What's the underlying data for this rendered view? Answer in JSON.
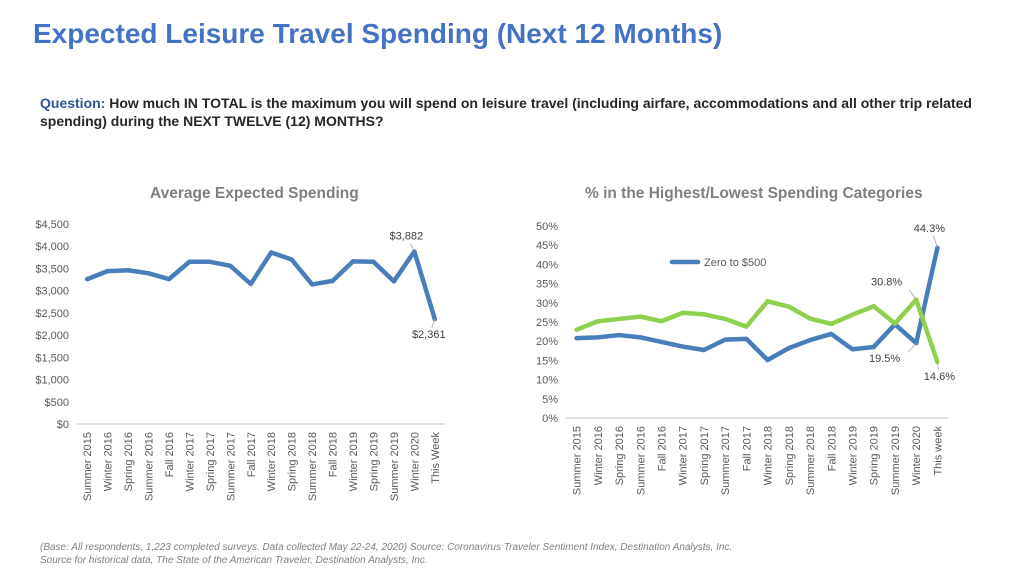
{
  "title": "Expected Leisure Travel Spending (Next 12 Months)",
  "question": {
    "label": "Question:",
    "text": "How much IN TOTAL is the maximum you will spend on leisure travel (including airfare, accommodations and all other trip related spending) during the NEXT TWELVE (12) MONTHS?"
  },
  "footnote": {
    "line1": "(Base: All respondents, 1,223 completed surveys. Data collected May 22-24, 2020) Source: Coronavirus Traveler Sentiment Index, Destination Analysts, Inc.",
    "line2": "Source for historical data, The State of the American Traveler, Destination Analysts, Inc."
  },
  "chart_data": [
    {
      "type": "line",
      "title": "Average Expected Spending",
      "categories": [
        "Summer 2015",
        "Winter 2016",
        "Spring 2016",
        "Summer 2016",
        "Fall 2016",
        "Winter 2017",
        "Spring 2017",
        "Summer 2017",
        "Fall 2017",
        "Winter 2018",
        "Spring 2018",
        "Summer 2018",
        "Fall 2018",
        "Winter 2019",
        "Spring 2019",
        "Summer 2019",
        "Winter 2020",
        "This Week"
      ],
      "series": [
        {
          "color": "#4a7ebb",
          "values": [
            3260,
            3440,
            3460,
            3390,
            3260,
            3650,
            3650,
            3560,
            3150,
            3860,
            3700,
            3140,
            3220,
            3660,
            3650,
            3210,
            3882,
            2361
          ]
        }
      ],
      "data_labels": [
        {
          "index": 16,
          "text": "$3,882"
        },
        {
          "index": 17,
          "text": "$2,361"
        }
      ],
      "ylim": [
        0,
        4500
      ],
      "yticks": [
        0,
        500,
        1000,
        1500,
        2000,
        2500,
        3000,
        3500,
        4000,
        4500
      ],
      "ytick_labels": [
        "$0",
        "$500",
        "$1,000",
        "$1,500",
        "$2,000",
        "$2,500",
        "$3,000",
        "$3,500",
        "$4,000",
        "$4,500"
      ],
      "grid": false
    },
    {
      "type": "line",
      "title": "% in the Highest/Lowest Spending Categories",
      "categories": [
        "Summer 2015",
        "Winter 2016",
        "Spring 2016",
        "Summer 2016",
        "Fall 2016",
        "Winter 2017",
        "Spring 2017",
        "Summer 2017",
        "Fall 2017",
        "Winter 2018",
        "Spring 2018",
        "Summer 2018",
        "Fall 2018",
        "Winter 2019",
        "Spring 2019",
        "Summer 2019",
        "Winter 2020",
        "This week"
      ],
      "series": [
        {
          "name": "Zero to $500",
          "color": "#4a7ebb",
          "values": [
            20.8,
            21.0,
            21.6,
            21.0,
            19.8,
            18.6,
            17.7,
            20.4,
            20.6,
            15.1,
            18.2,
            20.3,
            21.9,
            17.9,
            18.5,
            24.4,
            19.5,
            44.3
          ]
        },
        {
          "color": "#8fd14f",
          "values": [
            23.0,
            25.2,
            25.8,
            26.4,
            25.2,
            27.4,
            27.0,
            25.8,
            23.8,
            30.4,
            29.0,
            25.9,
            24.5,
            26.9,
            29.1,
            24.6,
            30.8,
            14.6
          ]
        }
      ],
      "data_labels": [
        {
          "series": 0,
          "index": 17,
          "text": "44.3%"
        },
        {
          "series": 1,
          "index": 16,
          "text": "30.8%"
        },
        {
          "series": 0,
          "index": 16,
          "text": "19.5%"
        },
        {
          "series": 1,
          "index": 17,
          "text": "14.6%"
        }
      ],
      "legend": "inside-top-left",
      "ylim": [
        0,
        50
      ],
      "yticks": [
        0,
        5,
        10,
        15,
        20,
        25,
        30,
        35,
        40,
        45,
        50
      ],
      "ytick_labels": [
        "0%",
        "5%",
        "10%",
        "15%",
        "20%",
        "25%",
        "30%",
        "35%",
        "40%",
        "45%",
        "50%"
      ],
      "grid": false
    }
  ]
}
